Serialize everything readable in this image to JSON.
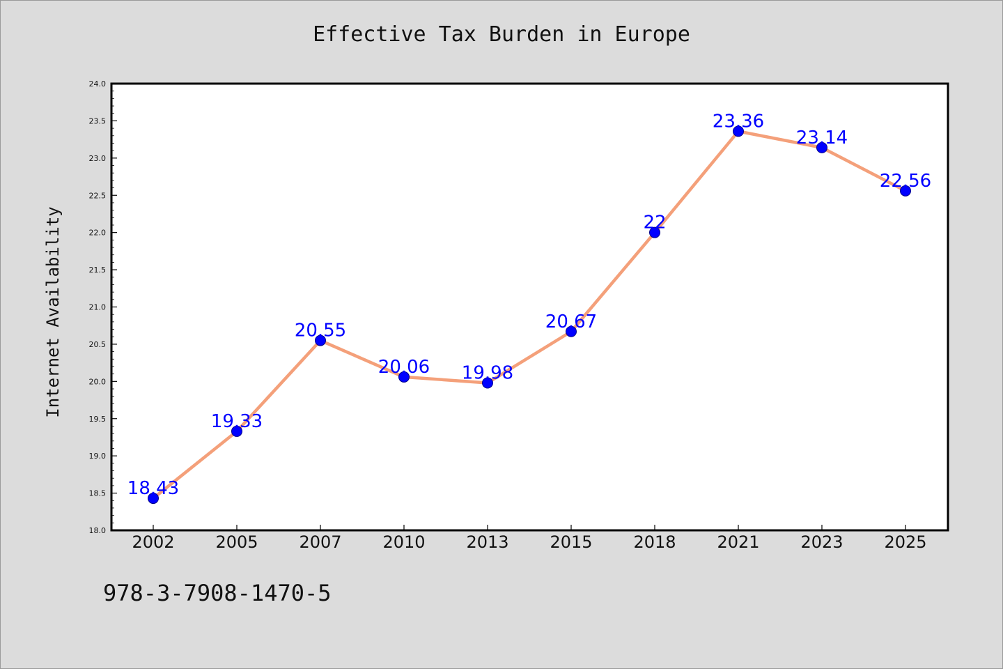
{
  "chart_data": {
    "type": "line",
    "title": "Effective Tax Burden in Europe",
    "xlabel": "",
    "ylabel": "Internet Availability",
    "categories": [
      "2002",
      "2005",
      "2007",
      "2010",
      "2013",
      "2015",
      "2018",
      "2021",
      "2023",
      "2025"
    ],
    "values": [
      18.43,
      19.33,
      20.55,
      20.06,
      19.98,
      20.67,
      22,
      23.36,
      23.14,
      22.56
    ],
    "data_labels": [
      "18.43",
      "19.33",
      "20.55",
      "20.06",
      "19.98",
      "20.67",
      "22",
      "23.36",
      "23.14",
      "22.56"
    ],
    "ylim": [
      18.0,
      24.0
    ],
    "y_ticks": [
      "18.0",
      "18.5",
      "19.0",
      "19.5",
      "20.0",
      "20.5",
      "21.0",
      "21.5",
      "22.0",
      "22.5",
      "23.0",
      "23.5",
      "24.0"
    ],
    "grid": false,
    "legend": "none",
    "line_color": "#f4a07a",
    "marker_color": "#0000ff",
    "label_color": "#0000ff"
  },
  "footer": {
    "code": "978-3-7908-1470-5"
  }
}
